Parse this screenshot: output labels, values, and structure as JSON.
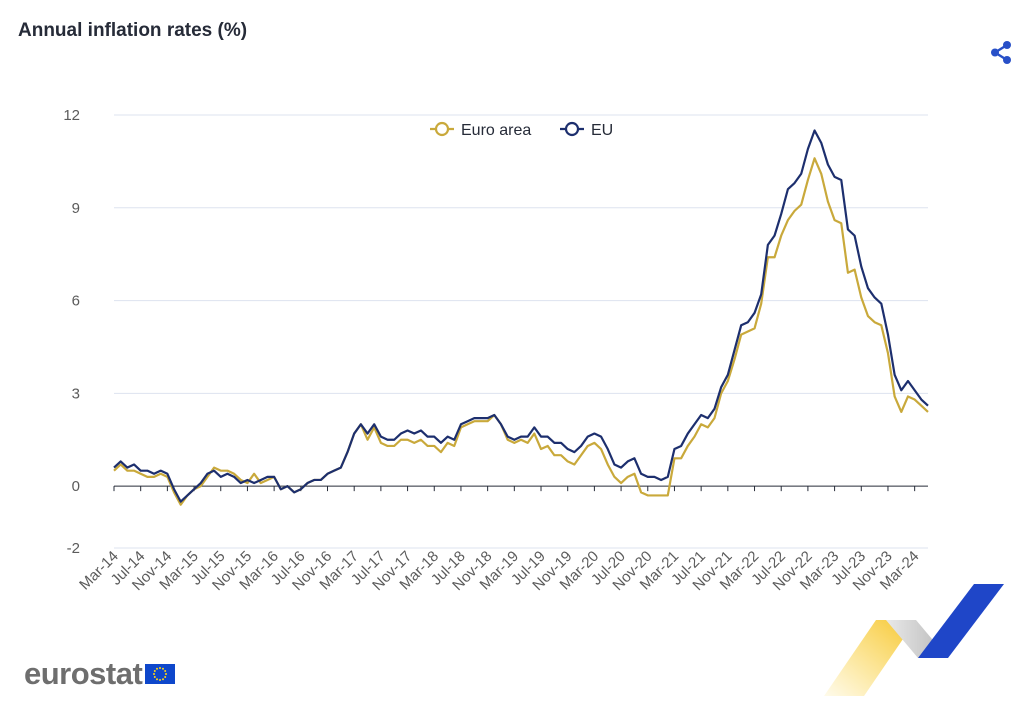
{
  "header": {
    "title": "Annual inflation rates (%)",
    "share_icon": "share-icon"
  },
  "logo": {
    "text": "eurostat",
    "flag_icon": "eu-flag-icon"
  },
  "colors": {
    "euro_area": "#c9a93b",
    "eu": "#1d2f6e",
    "grid": "#dde3ef",
    "share": "#2850c8"
  },
  "chart_data": {
    "type": "line",
    "title": "Annual inflation rates (%)",
    "xlabel": "",
    "ylabel": "",
    "ylim": [
      -2,
      12
    ],
    "yticks": [
      -2,
      0,
      3,
      6,
      9,
      12
    ],
    "grid": true,
    "legend_position": "top-center",
    "x_start": "Mar-14",
    "x_end": "Mar-24",
    "x_tick_labels": [
      "Mar-14",
      "Jul-14",
      "Nov-14",
      "Mar-15",
      "Jul-15",
      "Nov-15",
      "Mar-16",
      "Jul-16",
      "Nov-16",
      "Mar-17",
      "Jul-17",
      "Nov-17",
      "Mar-18",
      "Jul-18",
      "Nov-18",
      "Mar-19",
      "Jul-19",
      "Nov-19",
      "Mar-20",
      "Jul-20",
      "Nov-20",
      "Mar-21",
      "Jul-21",
      "Nov-21",
      "Mar-22",
      "Jul-22",
      "Nov-22",
      "Mar-23",
      "Jul-23",
      "Nov-23",
      "Mar-24"
    ],
    "series": [
      {
        "name": "Euro area",
        "color": "#c9a93b",
        "values": [
          0.5,
          0.7,
          0.5,
          0.5,
          0.4,
          0.3,
          0.3,
          0.4,
          0.3,
          -0.2,
          -0.6,
          -0.3,
          -0.1,
          0.0,
          0.3,
          0.6,
          0.5,
          0.5,
          0.4,
          0.2,
          0.1,
          0.4,
          0.1,
          0.2,
          0.3,
          -0.1,
          0.0,
          -0.2,
          -0.1,
          0.1,
          0.2,
          0.2,
          0.4,
          0.5,
          0.6,
          1.1,
          1.7,
          2.0,
          1.5,
          1.9,
          1.4,
          1.3,
          1.3,
          1.5,
          1.5,
          1.4,
          1.5,
          1.3,
          1.3,
          1.1,
          1.4,
          1.3,
          1.9,
          2.0,
          2.1,
          2.1,
          2.1,
          2.3,
          2.0,
          1.5,
          1.4,
          1.5,
          1.4,
          1.7,
          1.2,
          1.3,
          1.0,
          1.0,
          0.8,
          0.7,
          1.0,
          1.3,
          1.4,
          1.2,
          0.7,
          0.3,
          0.1,
          0.3,
          0.4,
          -0.2,
          -0.3,
          -0.3,
          -0.3,
          -0.3,
          0.9,
          0.9,
          1.3,
          1.6,
          2.0,
          1.9,
          2.2,
          3.0,
          3.4,
          4.1,
          4.9,
          5.0,
          5.1,
          5.9,
          7.4,
          7.4,
          8.1,
          8.6,
          8.9,
          9.1,
          9.9,
          10.6,
          10.1,
          9.2,
          8.6,
          8.5,
          6.9,
          7.0,
          6.1,
          5.5,
          5.3,
          5.2,
          4.3,
          2.9,
          2.4,
          2.9,
          2.8,
          2.6,
          2.4
        ]
      },
      {
        "name": "EU",
        "color": "#1d2f6e",
        "values": [
          0.6,
          0.8,
          0.6,
          0.7,
          0.5,
          0.5,
          0.4,
          0.5,
          0.4,
          -0.1,
          -0.5,
          -0.3,
          -0.1,
          0.1,
          0.4,
          0.5,
          0.3,
          0.4,
          0.3,
          0.1,
          0.2,
          0.1,
          0.2,
          0.3,
          0.3,
          -0.1,
          0.0,
          -0.2,
          -0.1,
          0.1,
          0.2,
          0.2,
          0.4,
          0.5,
          0.6,
          1.1,
          1.7,
          2.0,
          1.7,
          2.0,
          1.6,
          1.5,
          1.5,
          1.7,
          1.8,
          1.7,
          1.8,
          1.6,
          1.6,
          1.4,
          1.6,
          1.5,
          2.0,
          2.1,
          2.2,
          2.2,
          2.2,
          2.3,
          2.0,
          1.6,
          1.5,
          1.6,
          1.6,
          1.9,
          1.6,
          1.6,
          1.4,
          1.4,
          1.2,
          1.1,
          1.3,
          1.6,
          1.7,
          1.6,
          1.2,
          0.7,
          0.6,
          0.8,
          0.9,
          0.4,
          0.3,
          0.3,
          0.2,
          0.3,
          1.2,
          1.3,
          1.7,
          2.0,
          2.3,
          2.2,
          2.5,
          3.2,
          3.6,
          4.4,
          5.2,
          5.3,
          5.6,
          6.2,
          7.8,
          8.1,
          8.8,
          9.6,
          9.8,
          10.1,
          10.9,
          11.5,
          11.1,
          10.4,
          10.0,
          9.9,
          8.3,
          8.1,
          7.1,
          6.4,
          6.1,
          5.9,
          4.9,
          3.6,
          3.1,
          3.4,
          3.1,
          2.8,
          2.6
        ]
      }
    ]
  }
}
